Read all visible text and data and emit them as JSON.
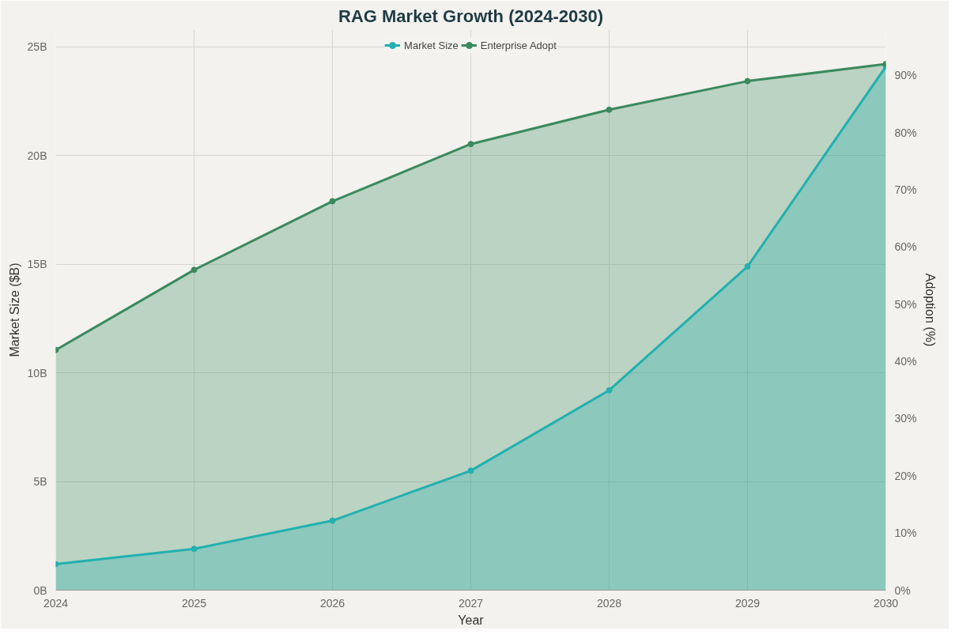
{
  "chart_data": {
    "type": "area",
    "title": "RAG Market Growth (2024-2030)",
    "xlabel": "Year",
    "ylabel": "Market Size ($B)",
    "y2label": "Adoption (%)",
    "x": [
      2024,
      2025,
      2026,
      2027,
      2028,
      2029,
      2030
    ],
    "series": [
      {
        "name": "Market Size",
        "color": "#22b0b0",
        "values": [
          1.2,
          1.9,
          3.2,
          5.5,
          9.2,
          14.9,
          24.1
        ]
      },
      {
        "name": "Enterprise Adopt",
        "color": "#3a8a5e",
        "axis": "y2",
        "values": [
          42,
          56,
          68,
          78,
          84,
          89,
          92
        ]
      }
    ],
    "xlim": [
      2024,
      2030
    ],
    "xticks": [
      2024,
      2025,
      2026,
      2027,
      2028,
      2029,
      2030
    ],
    "ylim": [
      0,
      25.8
    ],
    "yticks": [
      {
        "value": 0,
        "label": "0B"
      },
      {
        "value": 5,
        "label": "5B"
      },
      {
        "value": 10,
        "label": "10B"
      },
      {
        "value": 15,
        "label": "15B"
      },
      {
        "value": 20,
        "label": "20B"
      },
      {
        "value": 25,
        "label": "25B"
      }
    ],
    "y2lim": [
      0,
      98
    ],
    "y2ticks": [
      {
        "value": 0,
        "label": "0%"
      },
      {
        "value": 10,
        "label": "10%"
      },
      {
        "value": 20,
        "label": "20%"
      },
      {
        "value": 30,
        "label": "30%"
      },
      {
        "value": 40,
        "label": "40%"
      },
      {
        "value": 50,
        "label": "50%"
      },
      {
        "value": 60,
        "label": "60%"
      },
      {
        "value": 70,
        "label": "70%"
      },
      {
        "value": 80,
        "label": "80%"
      },
      {
        "value": 90,
        "label": "90%"
      }
    ],
    "grid": true,
    "legend": "top",
    "marker": "circle",
    "line_style": "solid"
  }
}
